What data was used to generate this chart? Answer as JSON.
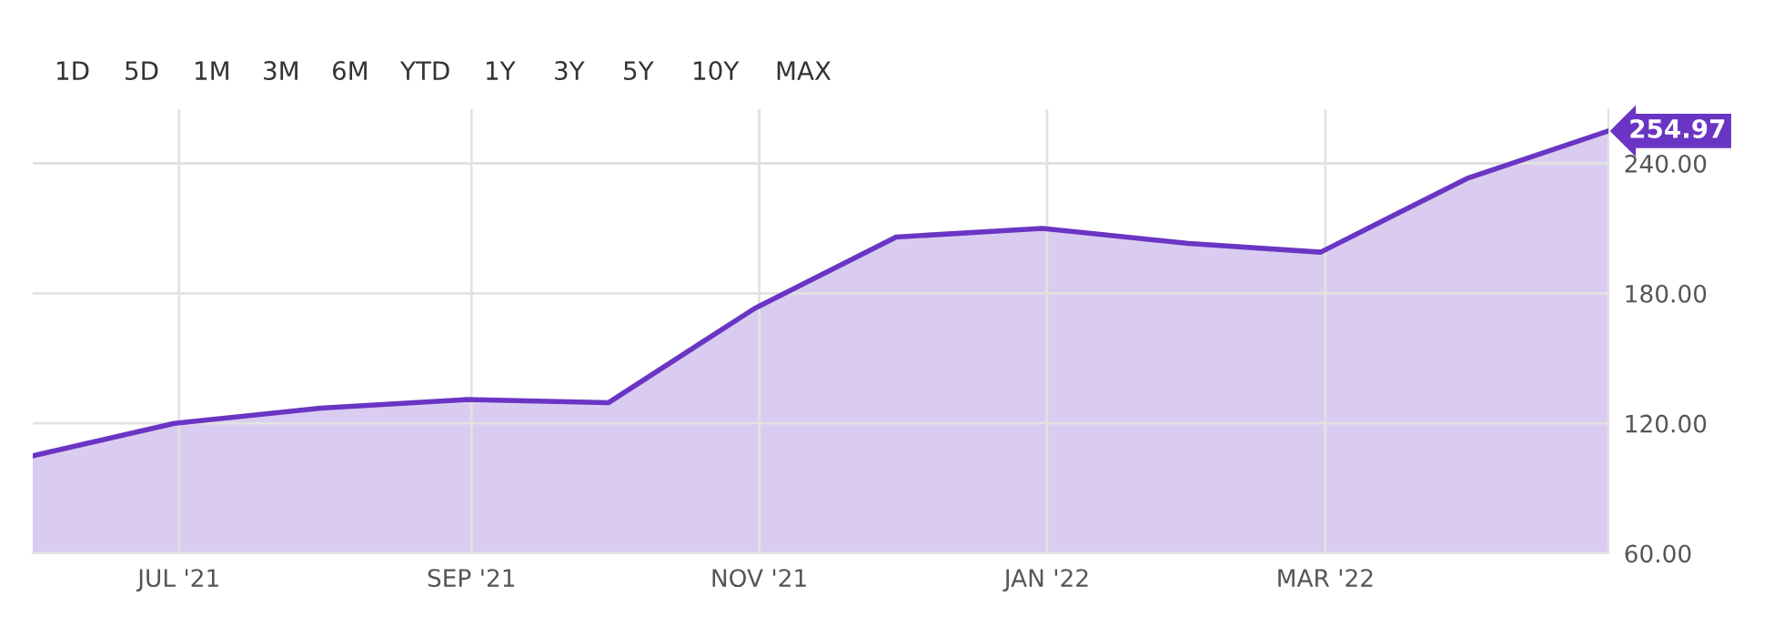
{
  "chart_data": {
    "type": "area",
    "x": [
      "2021-05-31",
      "2021-06-30",
      "2021-07-31",
      "2021-08-31",
      "2021-09-30",
      "2021-10-31",
      "2021-11-30",
      "2021-12-31",
      "2022-01-31",
      "2022-02-28",
      "2022-03-31",
      "2022-04-30"
    ],
    "series": [
      {
        "color": "#6a35c4",
        "values": [
          105,
          120,
          127,
          131,
          129.5,
          173,
          206,
          210,
          203,
          199,
          233,
          254.97
        ]
      }
    ],
    "xlim": [
      "2021-05-31",
      "2022-04-30"
    ],
    "xticks": [
      {
        "value": "2021-07-01",
        "label": "JUL '21"
      },
      {
        "value": "2021-09-01",
        "label": "SEP '21"
      },
      {
        "value": "2021-11-01",
        "label": "NOV '21"
      },
      {
        "value": "2022-01-01",
        "label": "JAN '22"
      },
      {
        "value": "2022-03-01",
        "label": "MAR '22"
      }
    ],
    "ylim": [
      60,
      265
    ],
    "yticks": [
      {
        "value": 60,
        "label": "60.00"
      },
      {
        "value": 120,
        "label": "120.00"
      },
      {
        "value": 180,
        "label": "180.00"
      },
      {
        "value": 240,
        "label": "240.00"
      }
    ],
    "grid": true,
    "annotations": [
      "1D",
      "5D",
      "1M",
      "3M",
      "6M",
      "YTD",
      "1Y",
      "3Y",
      "5Y",
      "10Y",
      "MAX",
      {
        "text": "254.97",
        "x": "2022-04-30",
        "y": 254.97
      }
    ]
  }
}
